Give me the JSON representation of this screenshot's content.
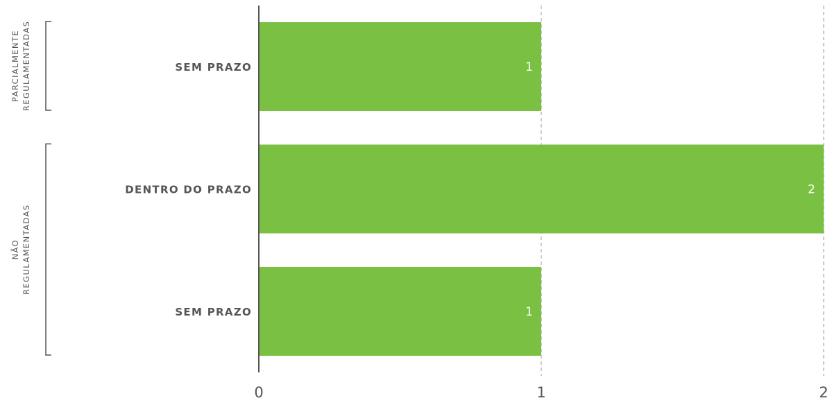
{
  "chart_data": {
    "type": "bar",
    "orientation": "horizontal",
    "categories": [
      "SEM PRAZO",
      "DENTRO DO PRAZO",
      "SEM PRAZO"
    ],
    "values": [
      1,
      2,
      1
    ],
    "groups": [
      {
        "label_lines": [
          "PARCIALMENTE",
          "REGULAMENTADAS"
        ],
        "category_indices": [
          0
        ]
      },
      {
        "label_lines": [
          "NÃO",
          "REGULAMENTADAS"
        ],
        "category_indices": [
          1,
          2
        ]
      }
    ],
    "x_ticks": [
      "0",
      "1",
      "2"
    ],
    "xlim": [
      0,
      2
    ],
    "xlabel": "",
    "ylabel": "",
    "title": "",
    "grid": "vertical dashed",
    "legend": "none",
    "bar_color": "#7ac143",
    "axis_color": "#555555",
    "grid_color": "#999999",
    "value_label_color": "#ffffff"
  }
}
